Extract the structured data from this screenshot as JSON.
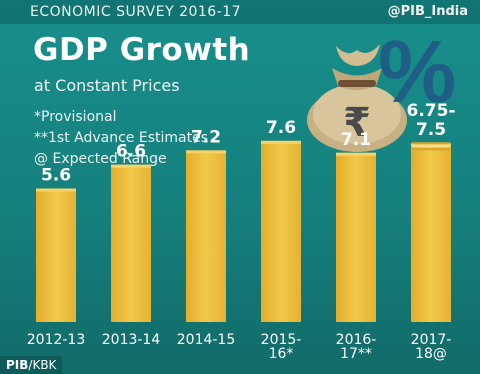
{
  "header": {
    "survey": "ECONOMIC SURVEY 2016-17",
    "handle": "@PIB_India"
  },
  "title": "GDP Growth",
  "subtitle": "at Constant Prices",
  "notes": [
    "*Provisional",
    "**1st Advance Estimates",
    "@ Expected Range"
  ],
  "decoration": {
    "bag_icon": "money-bag-rupee-icon",
    "percent_symbol": "%"
  },
  "footer": {
    "source_bold": "PIB",
    "source_rest": "/KBK"
  },
  "colors": {
    "background": "#16807d",
    "bar": "#f2c94c"
  },
  "chart_data": {
    "type": "bar",
    "categories": [
      "2012-13",
      "2013-14",
      "2014-15",
      "2015-16*",
      "2016-17**",
      "2017-18@"
    ],
    "category_lines": [
      [
        "2012-13"
      ],
      [
        "2013-14"
      ],
      [
        "2014-15"
      ],
      [
        "2015-",
        "16*"
      ],
      [
        "2016-",
        "17**"
      ],
      [
        "2017-",
        "18@"
      ]
    ],
    "values": [
      5.6,
      6.6,
      7.2,
      7.6,
      7.1,
      7.5
    ],
    "range_low": [
      null,
      null,
      null,
      null,
      null,
      6.75
    ],
    "value_labels": [
      [
        "5.6"
      ],
      [
        "6.6"
      ],
      [
        "7.2"
      ],
      [
        "7.6"
      ],
      [
        "7.1"
      ],
      [
        "6.75-",
        "7.5"
      ]
    ],
    "title": "GDP Growth",
    "xlabel": "",
    "ylabel": "",
    "ylim": [
      0,
      8.6
    ],
    "grid": false,
    "legend": "none"
  }
}
